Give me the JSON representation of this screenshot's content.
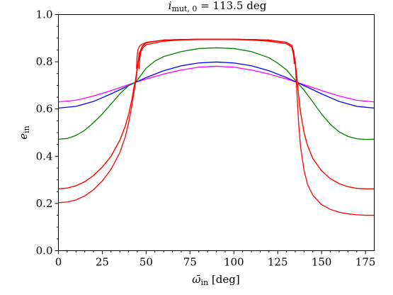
{
  "chart_data": {
    "type": "line",
    "title": {
      "prefix": "i",
      "subscript": "mut, 0",
      "suffix": " = 113.5 deg"
    },
    "xlabel": {
      "symbol": "ω̄",
      "subscript": "in",
      "suffix": " [deg]"
    },
    "ylabel": {
      "symbol": "e",
      "subscript": "in"
    },
    "xlim": [
      0,
      180
    ],
    "ylim": [
      0,
      1.0
    ],
    "xticks": [
      0,
      25,
      50,
      75,
      100,
      125,
      150,
      175
    ],
    "xtick_labels": [
      "0",
      "25",
      "50",
      "75",
      "100",
      "125",
      "150",
      "175"
    ],
    "yticks": [
      0.0,
      0.2,
      0.4,
      0.6,
      0.8,
      1.0
    ],
    "ytick_labels": [
      "0.0",
      "0.2",
      "0.4",
      "0.6",
      "0.8",
      "1.0"
    ],
    "grid": false,
    "series": [
      {
        "color": "#ff00ff",
        "x": [
          0,
          10,
          20,
          30,
          40,
          44,
          50,
          60,
          70,
          80,
          90,
          100,
          110,
          120,
          130,
          136,
          140,
          150,
          160,
          170,
          180
        ],
        "y": [
          0.63,
          0.637,
          0.655,
          0.678,
          0.703,
          0.713,
          0.727,
          0.748,
          0.765,
          0.777,
          0.781,
          0.777,
          0.765,
          0.748,
          0.727,
          0.713,
          0.703,
          0.678,
          0.655,
          0.637,
          0.63
        ]
      },
      {
        "color": "#0000ff",
        "x": [
          0,
          10,
          20,
          30,
          40,
          44,
          50,
          60,
          70,
          80,
          90,
          100,
          110,
          120,
          130,
          136,
          140,
          150,
          160,
          170,
          180
        ],
        "y": [
          0.604,
          0.611,
          0.632,
          0.664,
          0.699,
          0.713,
          0.733,
          0.762,
          0.783,
          0.795,
          0.799,
          0.795,
          0.783,
          0.762,
          0.733,
          0.713,
          0.699,
          0.664,
          0.632,
          0.611,
          0.604
        ]
      },
      {
        "color": "#008000",
        "x": [
          0,
          5,
          10,
          15,
          20,
          25,
          30,
          35,
          40,
          44,
          50,
          55,
          60,
          70,
          80,
          90,
          100,
          110,
          120,
          125,
          130,
          136,
          140,
          145,
          150,
          155,
          160,
          165,
          170,
          175,
          180
        ],
        "y": [
          0.472,
          0.475,
          0.488,
          0.51,
          0.542,
          0.579,
          0.621,
          0.664,
          0.699,
          0.713,
          0.773,
          0.803,
          0.822,
          0.843,
          0.856,
          0.859,
          0.856,
          0.843,
          0.817,
          0.794,
          0.766,
          0.713,
          0.68,
          0.63,
          0.578,
          0.535,
          0.503,
          0.484,
          0.474,
          0.471,
          0.472
        ]
      },
      {
        "color": "#ff8c00",
        "x": [
          0,
          5,
          10,
          15,
          20,
          25,
          30,
          35,
          38,
          40,
          42,
          43,
          44,
          45,
          46,
          48,
          50,
          60,
          70,
          80,
          90,
          100,
          110,
          120,
          130,
          133,
          134,
          135,
          136,
          137,
          138,
          140,
          142,
          145,
          150,
          155,
          160,
          165,
          170,
          175,
          180
        ],
        "y": [
          0.262,
          0.265,
          0.275,
          0.292,
          0.318,
          0.354,
          0.4,
          0.468,
          0.525,
          0.577,
          0.645,
          0.69,
          0.725,
          0.78,
          0.835,
          0.868,
          0.882,
          0.892,
          0.894,
          0.895,
          0.895,
          0.895,
          0.894,
          0.892,
          0.882,
          0.868,
          0.845,
          0.8,
          0.728,
          0.65,
          0.585,
          0.5,
          0.445,
          0.39,
          0.338,
          0.305,
          0.284,
          0.271,
          0.264,
          0.262,
          0.262
        ]
      },
      {
        "color": "#ff0000",
        "x": [
          0,
          5,
          10,
          15,
          20,
          25,
          30,
          35,
          38,
          40,
          42,
          43,
          44,
          45,
          46,
          48,
          50,
          60,
          70,
          80,
          90,
          100,
          110,
          120,
          130,
          133,
          134,
          135,
          136,
          137,
          138,
          140,
          142,
          145,
          150,
          155,
          160,
          165,
          170,
          175,
          180
        ],
        "y": [
          0.262,
          0.265,
          0.275,
          0.292,
          0.318,
          0.354,
          0.4,
          0.468,
          0.525,
          0.577,
          0.645,
          0.69,
          0.725,
          0.78,
          0.835,
          0.868,
          0.882,
          0.892,
          0.894,
          0.895,
          0.895,
          0.895,
          0.894,
          0.892,
          0.882,
          0.868,
          0.845,
          0.8,
          0.728,
          0.65,
          0.585,
          0.5,
          0.445,
          0.39,
          0.338,
          0.305,
          0.284,
          0.271,
          0.264,
          0.262,
          0.262
        ]
      },
      {
        "color": "#ff0000",
        "x": [
          44.5,
          44.8,
          45.3,
          46,
          47,
          50,
          60,
          70,
          80,
          90,
          100,
          110,
          120,
          130,
          133,
          134,
          134.4
        ],
        "y": [
          0.77,
          0.82,
          0.85,
          0.863,
          0.872,
          0.882,
          0.891,
          0.894,
          0.895,
          0.895,
          0.895,
          0.894,
          0.891,
          0.882,
          0.87,
          0.84,
          0.79
        ]
      },
      {
        "color": "#ff0000",
        "x": [
          46,
          46.3,
          47,
          48,
          50,
          60,
          70,
          80,
          90,
          100,
          110,
          120,
          130,
          133,
          134.2,
          134.5
        ],
        "y": [
          0.77,
          0.81,
          0.842,
          0.858,
          0.872,
          0.887,
          0.892,
          0.894,
          0.895,
          0.894,
          0.892,
          0.887,
          0.876,
          0.862,
          0.82,
          0.79
        ]
      },
      {
        "color": "#ff0000",
        "x": [
          0,
          5,
          10,
          15,
          20,
          25,
          30,
          35,
          38,
          40,
          42,
          44,
          45,
          46,
          47,
          48,
          50,
          60,
          70,
          80,
          90,
          100,
          110,
          120,
          130,
          133,
          134,
          135,
          136,
          137,
          138,
          140,
          142,
          145,
          150,
          155,
          160,
          165,
          170,
          175,
          180
        ],
        "y": [
          0.203,
          0.206,
          0.215,
          0.232,
          0.258,
          0.295,
          0.345,
          0.415,
          0.48,
          0.54,
          0.62,
          0.713,
          0.77,
          0.82,
          0.85,
          0.866,
          0.88,
          0.892,
          0.894,
          0.895,
          0.895,
          0.895,
          0.894,
          0.892,
          0.882,
          0.868,
          0.845,
          0.79,
          0.66,
          0.53,
          0.44,
          0.34,
          0.28,
          0.235,
          0.195,
          0.175,
          0.163,
          0.156,
          0.152,
          0.15,
          0.15
        ]
      }
    ]
  }
}
